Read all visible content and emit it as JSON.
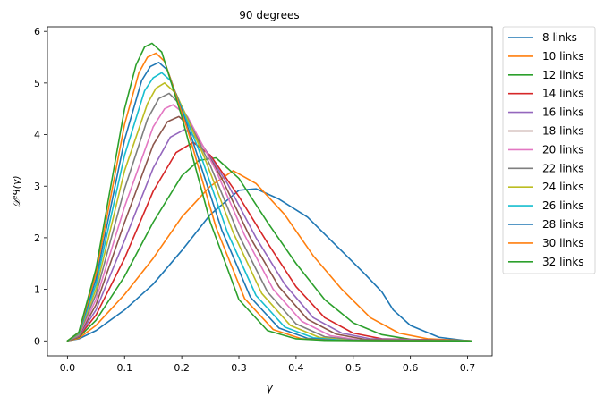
{
  "chart_data": {
    "type": "line",
    "title": "90 degrees",
    "xlabel": "γ",
    "ylabel": "𝒟ᵉᑫ(γ)",
    "xlim": [
      -0.035,
      0.743
    ],
    "ylim": [
      -0.29,
      6.09
    ],
    "x_ticks": [
      "0.0",
      "0.1",
      "0.2",
      "0.3",
      "0.4",
      "0.5",
      "0.6",
      "0.7"
    ],
    "y_ticks": [
      "0",
      "1",
      "2",
      "3",
      "4",
      "5",
      "6"
    ],
    "legend_position": "outside-right",
    "grid": false,
    "series": [
      {
        "name": "8 links",
        "color": "#1f77b4",
        "points": [
          [
            0,
            0
          ],
          [
            0.02,
            0.04
          ],
          [
            0.05,
            0.2
          ],
          [
            0.1,
            0.6
          ],
          [
            0.15,
            1.1
          ],
          [
            0.2,
            1.75
          ],
          [
            0.25,
            2.45
          ],
          [
            0.3,
            2.92
          ],
          [
            0.33,
            2.95
          ],
          [
            0.37,
            2.75
          ],
          [
            0.42,
            2.4
          ],
          [
            0.47,
            1.85
          ],
          [
            0.52,
            1.3
          ],
          [
            0.55,
            0.95
          ],
          [
            0.57,
            0.6
          ],
          [
            0.6,
            0.3
          ],
          [
            0.65,
            0.07
          ],
          [
            0.7,
            0.0
          ],
          [
            0.707,
            0.0
          ]
        ]
      },
      {
        "name": "10 links",
        "color": "#ff7f0e",
        "points": [
          [
            0,
            0
          ],
          [
            0.02,
            0.05
          ],
          [
            0.05,
            0.3
          ],
          [
            0.1,
            0.9
          ],
          [
            0.15,
            1.6
          ],
          [
            0.2,
            2.4
          ],
          [
            0.25,
            3.0
          ],
          [
            0.29,
            3.3
          ],
          [
            0.33,
            3.05
          ],
          [
            0.38,
            2.45
          ],
          [
            0.43,
            1.65
          ],
          [
            0.48,
            1.0
          ],
          [
            0.53,
            0.45
          ],
          [
            0.58,
            0.15
          ],
          [
            0.63,
            0.04
          ],
          [
            0.707,
            0.0
          ]
        ]
      },
      {
        "name": "12 links",
        "color": "#2ca02c",
        "points": [
          [
            0,
            0
          ],
          [
            0.02,
            0.07
          ],
          [
            0.05,
            0.4
          ],
          [
            0.1,
            1.25
          ],
          [
            0.15,
            2.3
          ],
          [
            0.2,
            3.2
          ],
          [
            0.23,
            3.5
          ],
          [
            0.26,
            3.55
          ],
          [
            0.3,
            3.15
          ],
          [
            0.35,
            2.3
          ],
          [
            0.4,
            1.5
          ],
          [
            0.45,
            0.8
          ],
          [
            0.5,
            0.35
          ],
          [
            0.55,
            0.12
          ],
          [
            0.6,
            0.03
          ],
          [
            0.707,
            0.0
          ]
        ]
      },
      {
        "name": "14 links",
        "color": "#d62728",
        "points": [
          [
            0,
            0
          ],
          [
            0.02,
            0.08
          ],
          [
            0.05,
            0.5
          ],
          [
            0.1,
            1.6
          ],
          [
            0.15,
            2.9
          ],
          [
            0.19,
            3.65
          ],
          [
            0.22,
            3.85
          ],
          [
            0.25,
            3.6
          ],
          [
            0.3,
            2.8
          ],
          [
            0.35,
            1.9
          ],
          [
            0.4,
            1.05
          ],
          [
            0.45,
            0.45
          ],
          [
            0.5,
            0.15
          ],
          [
            0.55,
            0.04
          ],
          [
            0.707,
            0.0
          ]
        ]
      },
      {
        "name": "16 links",
        "color": "#9467bd",
        "points": [
          [
            0,
            0
          ],
          [
            0.02,
            0.09
          ],
          [
            0.05,
            0.6
          ],
          [
            0.1,
            1.95
          ],
          [
            0.15,
            3.35
          ],
          [
            0.18,
            3.95
          ],
          [
            0.205,
            4.1
          ],
          [
            0.23,
            3.9
          ],
          [
            0.28,
            3.05
          ],
          [
            0.33,
            2.0
          ],
          [
            0.38,
            1.1
          ],
          [
            0.43,
            0.45
          ],
          [
            0.48,
            0.15
          ],
          [
            0.53,
            0.04
          ],
          [
            0.707,
            0.0
          ]
        ]
      },
      {
        "name": "18 links",
        "color": "#8c564b",
        "points": [
          [
            0,
            0
          ],
          [
            0.02,
            0.1
          ],
          [
            0.05,
            0.7
          ],
          [
            0.1,
            2.3
          ],
          [
            0.15,
            3.8
          ],
          [
            0.175,
            4.25
          ],
          [
            0.195,
            4.35
          ],
          [
            0.22,
            4.1
          ],
          [
            0.27,
            3.15
          ],
          [
            0.32,
            2.0
          ],
          [
            0.37,
            1.05
          ],
          [
            0.42,
            0.42
          ],
          [
            0.47,
            0.13
          ],
          [
            0.52,
            0.03
          ],
          [
            0.707,
            0.0
          ]
        ]
      },
      {
        "name": "20 links",
        "color": "#e377c2",
        "points": [
          [
            0,
            0
          ],
          [
            0.02,
            0.11
          ],
          [
            0.05,
            0.8
          ],
          [
            0.1,
            2.6
          ],
          [
            0.15,
            4.15
          ],
          [
            0.17,
            4.5
          ],
          [
            0.185,
            4.58
          ],
          [
            0.21,
            4.35
          ],
          [
            0.26,
            3.3
          ],
          [
            0.31,
            2.05
          ],
          [
            0.36,
            1.0
          ],
          [
            0.41,
            0.38
          ],
          [
            0.46,
            0.1
          ],
          [
            0.51,
            0.02
          ],
          [
            0.707,
            0.0
          ]
        ]
      },
      {
        "name": "22 links",
        "color": "#7f7f7f",
        "points": [
          [
            0,
            0
          ],
          [
            0.02,
            0.12
          ],
          [
            0.05,
            0.9
          ],
          [
            0.1,
            2.95
          ],
          [
            0.14,
            4.3
          ],
          [
            0.16,
            4.7
          ],
          [
            0.178,
            4.8
          ],
          [
            0.2,
            4.55
          ],
          [
            0.25,
            3.4
          ],
          [
            0.3,
            2.05
          ],
          [
            0.35,
            0.95
          ],
          [
            0.4,
            0.33
          ],
          [
            0.45,
            0.08
          ],
          [
            0.5,
            0.02
          ],
          [
            0.707,
            0.0
          ]
        ]
      },
      {
        "name": "24 links",
        "color": "#bcbd22",
        "points": [
          [
            0,
            0
          ],
          [
            0.02,
            0.13
          ],
          [
            0.05,
            1.0
          ],
          [
            0.1,
            3.3
          ],
          [
            0.14,
            4.6
          ],
          [
            0.155,
            4.9
          ],
          [
            0.17,
            5.0
          ],
          [
            0.19,
            4.8
          ],
          [
            0.24,
            3.55
          ],
          [
            0.29,
            2.1
          ],
          [
            0.34,
            0.92
          ],
          [
            0.39,
            0.3
          ],
          [
            0.44,
            0.07
          ],
          [
            0.49,
            0.01
          ],
          [
            0.707,
            0.0
          ]
        ]
      },
      {
        "name": "26 links",
        "color": "#17becf",
        "points": [
          [
            0,
            0
          ],
          [
            0.02,
            0.14
          ],
          [
            0.05,
            1.1
          ],
          [
            0.1,
            3.6
          ],
          [
            0.135,
            4.85
          ],
          [
            0.15,
            5.1
          ],
          [
            0.165,
            5.2
          ],
          [
            0.18,
            5.05
          ],
          [
            0.23,
            3.7
          ],
          [
            0.28,
            2.1
          ],
          [
            0.33,
            0.88
          ],
          [
            0.38,
            0.27
          ],
          [
            0.43,
            0.06
          ],
          [
            0.48,
            0.01
          ],
          [
            0.707,
            0.0
          ]
        ]
      },
      {
        "name": "28 links",
        "color": "#1f77b4",
        "points": [
          [
            0,
            0
          ],
          [
            0.02,
            0.15
          ],
          [
            0.05,
            1.2
          ],
          [
            0.1,
            3.9
          ],
          [
            0.13,
            5.05
          ],
          [
            0.145,
            5.32
          ],
          [
            0.16,
            5.4
          ],
          [
            0.175,
            5.25
          ],
          [
            0.22,
            3.85
          ],
          [
            0.27,
            2.15
          ],
          [
            0.32,
            0.85
          ],
          [
            0.37,
            0.25
          ],
          [
            0.42,
            0.05
          ],
          [
            0.47,
            0.01
          ],
          [
            0.707,
            0.0
          ]
        ]
      },
      {
        "name": "30 links",
        "color": "#ff7f0e",
        "points": [
          [
            0,
            0
          ],
          [
            0.02,
            0.16
          ],
          [
            0.05,
            1.3
          ],
          [
            0.1,
            4.2
          ],
          [
            0.125,
            5.2
          ],
          [
            0.14,
            5.5
          ],
          [
            0.155,
            5.58
          ],
          [
            0.17,
            5.42
          ],
          [
            0.21,
            4.1
          ],
          [
            0.26,
            2.2
          ],
          [
            0.31,
            0.82
          ],
          [
            0.36,
            0.22
          ],
          [
            0.41,
            0.04
          ],
          [
            0.46,
            0.01
          ],
          [
            0.707,
            0.0
          ]
        ]
      },
      {
        "name": "32 links",
        "color": "#2ca02c",
        "points": [
          [
            0,
            0
          ],
          [
            0.02,
            0.17
          ],
          [
            0.05,
            1.4
          ],
          [
            0.1,
            4.5
          ],
          [
            0.12,
            5.35
          ],
          [
            0.135,
            5.7
          ],
          [
            0.148,
            5.77
          ],
          [
            0.165,
            5.6
          ],
          [
            0.2,
            4.35
          ],
          [
            0.25,
            2.3
          ],
          [
            0.3,
            0.8
          ],
          [
            0.35,
            0.2
          ],
          [
            0.4,
            0.04
          ],
          [
            0.45,
            0.01
          ],
          [
            0.707,
            0.0
          ]
        ]
      }
    ]
  }
}
